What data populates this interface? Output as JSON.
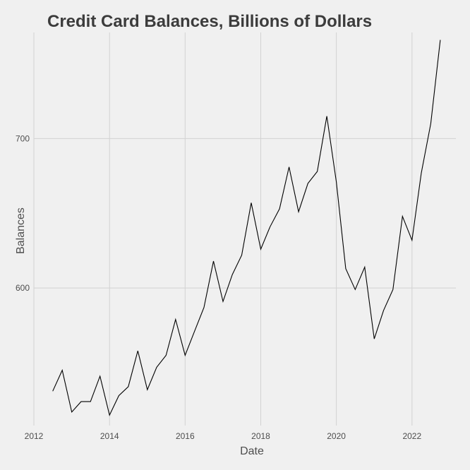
{
  "chart_data": {
    "type": "line",
    "title": "Credit Card Balances, Billions of Dollars",
    "xlabel": "Date",
    "ylabel": "Balances",
    "x_ticks": [
      "2012",
      "2014",
      "2016",
      "2018",
      "2020",
      "2022"
    ],
    "y_ticks": [
      "600",
      "700"
    ],
    "xlim": [
      "2012-01-01",
      "2023-03-01"
    ],
    "ylim": [
      508,
      771
    ],
    "grid": true,
    "colors": {
      "line": "#000000",
      "grid": "#d2d2d2",
      "background": "#f0f0f0",
      "title": "#3c3c3c"
    },
    "series": [
      {
        "x": [
          "2012-07-01",
          "2012-10-01",
          "2013-01-01",
          "2013-04-01",
          "2013-07-01",
          "2013-10-01",
          "2014-01-01",
          "2014-04-01",
          "2014-07-01",
          "2014-10-01",
          "2015-01-01",
          "2015-04-01",
          "2015-07-01",
          "2015-10-01",
          "2016-01-01",
          "2016-04-01",
          "2016-07-01",
          "2016-10-01",
          "2017-01-01",
          "2017-04-01",
          "2017-07-01",
          "2017-10-01",
          "2018-01-01",
          "2018-04-01",
          "2018-07-01",
          "2018-10-01",
          "2019-01-01",
          "2019-04-01",
          "2019-07-01",
          "2019-10-01",
          "2020-01-01",
          "2020-04-01",
          "2020-07-01",
          "2020-10-01",
          "2021-01-01",
          "2021-04-01",
          "2021-07-01",
          "2021-10-01",
          "2022-01-01",
          "2022-04-01",
          "2022-07-01",
          "2022-10-01"
        ],
        "values": [
          531,
          545,
          517,
          524,
          524,
          541,
          515,
          528,
          534,
          558,
          532,
          547,
          555,
          579,
          555,
          571,
          587,
          618,
          591,
          609,
          622,
          657,
          626,
          641,
          653,
          681,
          651,
          670,
          678,
          715,
          671,
          613,
          599,
          614,
          566,
          585,
          599,
          648,
          632,
          677,
          710,
          766
        ]
      }
    ]
  }
}
